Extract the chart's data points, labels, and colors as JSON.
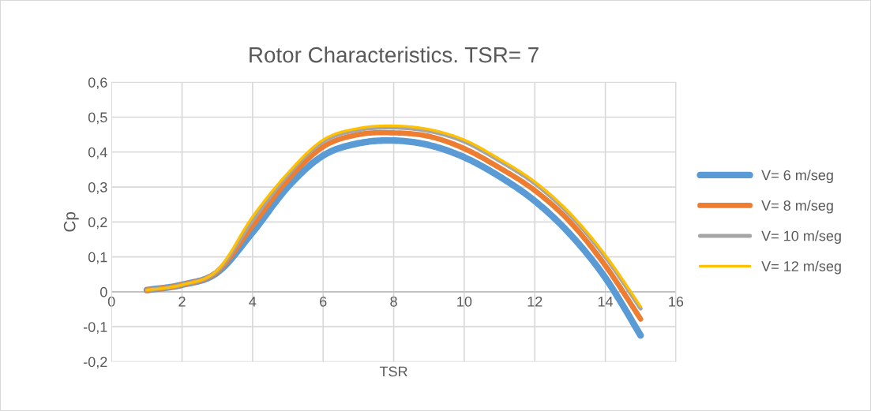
{
  "chart_data": {
    "type": "line",
    "title": "Rotor Characteristics. TSR= 7",
    "xlabel": "TSR",
    "ylabel": "Cp",
    "x": [
      1,
      2,
      3,
      4,
      5,
      6,
      7,
      8,
      9,
      10,
      11,
      12,
      13,
      14,
      15
    ],
    "series": [
      {
        "name": "V= 6 m/seg",
        "color": "#5b9bd5",
        "values": [
          0.005,
          0.02,
          0.055,
          0.17,
          0.3,
          0.39,
          0.425,
          0.433,
          0.42,
          0.385,
          0.33,
          0.26,
          0.165,
          0.04,
          -0.125
        ]
      },
      {
        "name": "V= 8 m/seg",
        "color": "#ed7d31",
        "values": [
          0.005,
          0.02,
          0.058,
          0.19,
          0.32,
          0.415,
          0.45,
          0.455,
          0.445,
          0.41,
          0.355,
          0.29,
          0.2,
          0.075,
          -0.078
        ]
      },
      {
        "name": "V= 10 m/seg",
        "color": "#a5a5a5",
        "values": [
          0.005,
          0.02,
          0.06,
          0.205,
          0.335,
          0.43,
          0.463,
          0.47,
          0.46,
          0.43,
          0.375,
          0.31,
          0.22,
          0.1,
          -0.048
        ]
      },
      {
        "name": "V= 12 m/seg",
        "color": "#ffc000",
        "values": [
          0.005,
          0.02,
          0.062,
          0.215,
          0.34,
          0.435,
          0.468,
          0.475,
          0.465,
          0.435,
          0.38,
          0.315,
          0.225,
          0.105,
          -0.042
        ]
      }
    ],
    "xlim": [
      0,
      16
    ],
    "xticks": [
      0,
      2,
      4,
      6,
      8,
      10,
      12,
      14,
      16
    ],
    "ylim": [
      -0.2,
      0.6
    ],
    "yticks": [
      {
        "value": -0.2,
        "label": "-0,2"
      },
      {
        "value": -0.1,
        "label": "-0,1"
      },
      {
        "value": 0,
        "label": "0"
      },
      {
        "value": 0.1,
        "label": "0,1"
      },
      {
        "value": 0.2,
        "label": "0,2"
      },
      {
        "value": 0.3,
        "label": "0,3"
      },
      {
        "value": 0.4,
        "label": "0,4"
      },
      {
        "value": 0.5,
        "label": "0,5"
      },
      {
        "value": 0.6,
        "label": "0,6"
      }
    ],
    "grid": true,
    "legend": "right",
    "marker": "none",
    "line_style": "solid"
  }
}
